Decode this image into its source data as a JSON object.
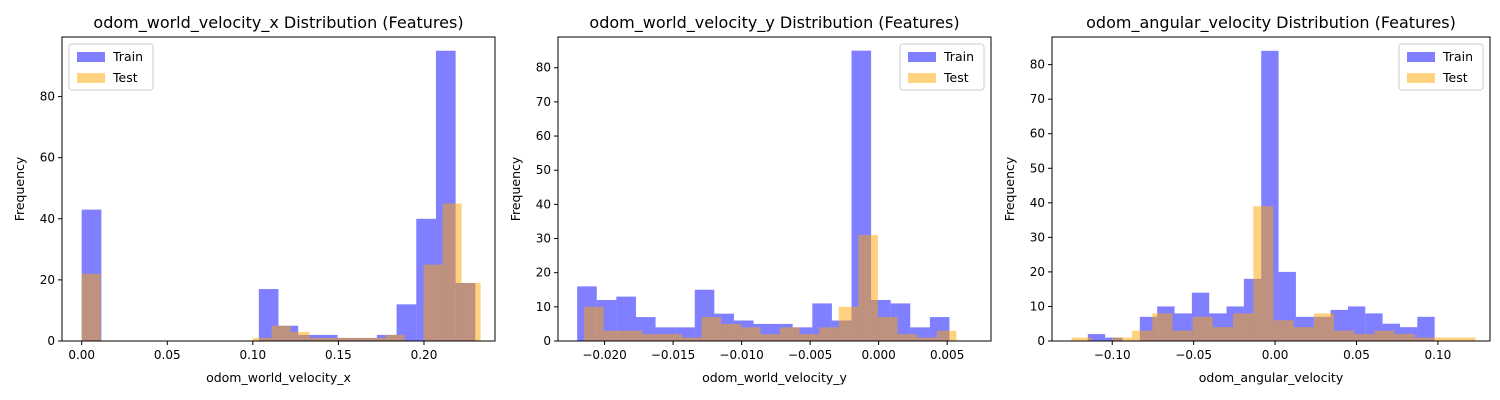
{
  "colors": {
    "train": "#0000ff",
    "test": "#ffa500",
    "axes": "#000000",
    "legend_border": "#cccccc"
  },
  "chart_data": [
    {
      "type": "histogram",
      "title": "odom_world_velocity_x Distribution (Features)",
      "xlabel": "odom_world_velocity_x",
      "ylabel": "Frequency",
      "xlim": [
        -0.0115,
        0.2415
      ],
      "ylim": [
        0,
        99.5
      ],
      "xticks": [
        0.0,
        0.05,
        0.1,
        0.15,
        0.2
      ],
      "xtick_labels": [
        "0.00",
        "0.05",
        "0.10",
        "0.15",
        "0.20"
      ],
      "yticks": [
        0,
        20,
        40,
        60,
        80
      ],
      "ytick_labels": [
        "0",
        "20",
        "40",
        "60",
        "80"
      ],
      "legend": {
        "position": "upper left",
        "entries": [
          "Train",
          "Test"
        ]
      },
      "series": [
        {
          "name": "Train",
          "bin_start": 0.0,
          "bin_width": 0.0115,
          "alpha": 0.5,
          "values": [
            43,
            0,
            0,
            0,
            0,
            0,
            0,
            0,
            0,
            17,
            5,
            2,
            2,
            1,
            1,
            2,
            12,
            40,
            95,
            19
          ]
        },
        {
          "name": "Test",
          "bin_start": 0.0,
          "bin_width": 0.0111,
          "alpha": 0.5,
          "values": [
            22,
            0,
            0,
            0,
            0,
            0,
            0,
            0,
            0,
            1,
            5,
            3,
            1,
            1,
            1,
            1,
            2,
            0,
            25,
            45,
            19
          ]
        }
      ]
    },
    {
      "type": "histogram",
      "title": "odom_world_velocity_y Distribution (Features)",
      "xlabel": "odom_world_velocity_y",
      "ylabel": "Frequency",
      "xlim": [
        -0.0234,
        0.0082
      ],
      "ylim": [
        0,
        89
      ],
      "xticks": [
        -0.02,
        -0.015,
        -0.01,
        -0.005,
        0.0,
        0.005
      ],
      "xtick_labels": [
        "−0.020",
        "−0.015",
        "−0.010",
        "−0.005",
        "0.000",
        "0.005"
      ],
      "yticks": [
        0,
        10,
        20,
        30,
        40,
        50,
        60,
        70,
        80
      ],
      "ytick_labels": [
        "0",
        "10",
        "20",
        "30",
        "40",
        "50",
        "60",
        "70",
        "80"
      ],
      "legend": {
        "position": "upper right",
        "entries": [
          "Train",
          "Test"
        ]
      },
      "series": [
        {
          "name": "Train",
          "bin_start": -0.022,
          "bin_width": 0.00143,
          "alpha": 0.5,
          "values": [
            16,
            12,
            13,
            7,
            4,
            4,
            15,
            8,
            6,
            5,
            5,
            4,
            11,
            6,
            85,
            12,
            11,
            4,
            7
          ]
        },
        {
          "name": "Test",
          "bin_start": -0.0215,
          "bin_width": 0.00143,
          "alpha": 0.5,
          "values": [
            10,
            3,
            3,
            2,
            2,
            1,
            7,
            5,
            4,
            2,
            4,
            2,
            4,
            10,
            31,
            7,
            2,
            1,
            3
          ]
        }
      ]
    },
    {
      "type": "histogram",
      "title": "odom_angular_velocity Distribution (Features)",
      "xlabel": "odom_angular_velocity",
      "ylabel": "Frequency",
      "xlim": [
        -0.137,
        0.132
      ],
      "ylim": [
        0,
        88
      ],
      "xticks": [
        -0.1,
        -0.05,
        0.0,
        0.05,
        0.1
      ],
      "xtick_labels": [
        "−0.10",
        "−0.05",
        "0.00",
        "0.05",
        "0.10"
      ],
      "yticks": [
        0,
        10,
        20,
        30,
        40,
        50,
        60,
        70,
        80
      ],
      "ytick_labels": [
        "0",
        "10",
        "20",
        "30",
        "40",
        "50",
        "60",
        "70",
        "80"
      ],
      "legend": {
        "position": "upper right",
        "entries": [
          "Train",
          "Test"
        ]
      },
      "series": [
        {
          "name": "Train",
          "bin_start": -0.115,
          "bin_width": 0.01065,
          "alpha": 0.5,
          "values": [
            2,
            1,
            0,
            7,
            10,
            8,
            14,
            8,
            10,
            18,
            84,
            20,
            7,
            7,
            9,
            10,
            8,
            5,
            4,
            7
          ]
        },
        {
          "name": "Test",
          "bin_start": -0.125,
          "bin_width": 0.0124,
          "alpha": 0.5,
          "values": [
            1,
            0,
            1,
            3,
            8,
            3,
            7,
            4,
            8,
            39,
            6,
            4,
            8,
            3,
            2,
            3,
            2,
            1,
            1,
            1
          ]
        }
      ]
    }
  ]
}
